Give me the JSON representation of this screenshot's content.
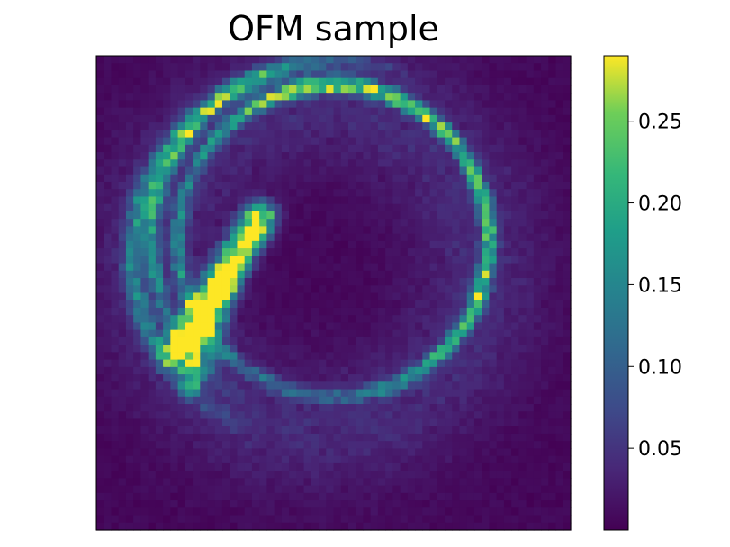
{
  "chart_data": {
    "type": "heatmap",
    "title": "OFM sample",
    "xlabel": "",
    "ylabel": "",
    "grid_size": 64,
    "colormap": "viridis",
    "color_range": [
      0.0,
      0.29
    ],
    "axis_ticks_shown": false,
    "colorbar": {
      "placement": "right",
      "ticks": [
        0.05,
        0.1,
        0.15,
        0.2,
        0.25
      ],
      "tick_labels": [
        "0.05",
        "0.10",
        "0.15",
        "0.20",
        "0.25"
      ]
    },
    "features": [
      {
        "kind": "ring",
        "center": [
          32,
          25
        ],
        "radius": 21,
        "peak": 0.22
      },
      {
        "kind": "outer-arc",
        "center": [
          30,
          27
        ],
        "radius": 25,
        "peak": 0.12
      },
      {
        "kind": "diagonal-band",
        "from": [
          11,
          40
        ],
        "to": [
          22,
          22
        ],
        "peak": 0.29
      }
    ]
  }
}
